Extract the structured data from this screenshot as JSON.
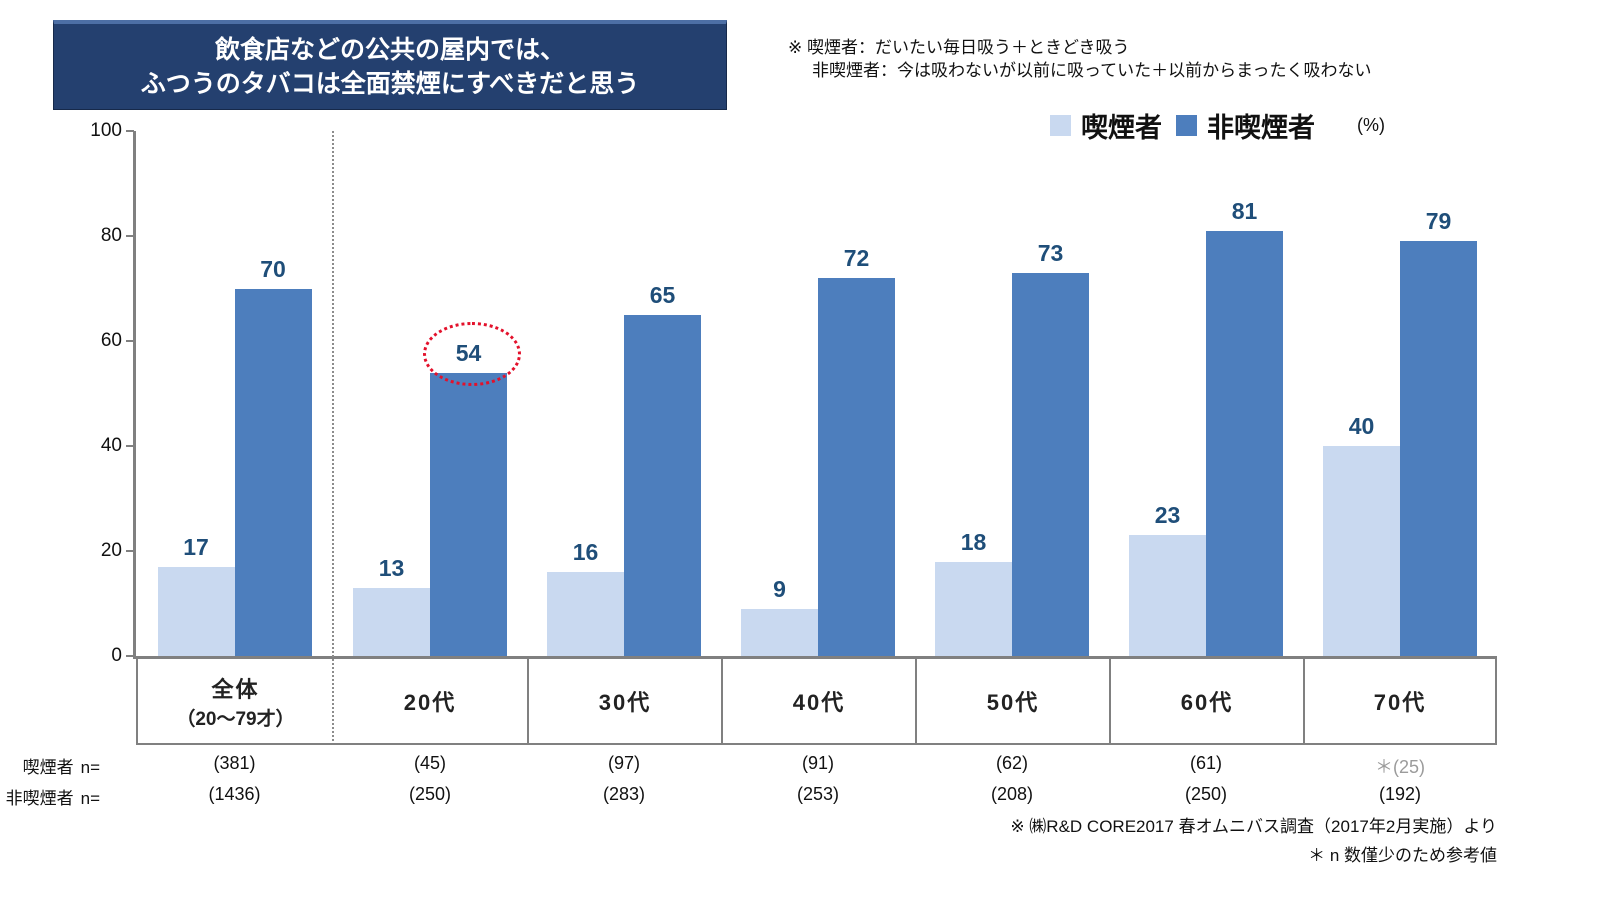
{
  "title": {
    "lines": [
      "飲食店などの公共の屋内では、",
      "ふつうのタバコは全面禁煙にすべきだと思う"
    ]
  },
  "definition_note": {
    "line1": "※ 喫煙者：だいたい毎日吸う＋ときどき吸う",
    "line2": "非喫煙者：今は吸わないが以前に吸っていた＋以前からまったく吸わない"
  },
  "legend": {
    "items": [
      {
        "label": "喫煙者",
        "color": "#c9d9f0"
      },
      {
        "label": "非喫煙者",
        "color": "#4d7ebd"
      }
    ],
    "unit_label": "(%)"
  },
  "chart_data": {
    "type": "bar",
    "title": "飲食店などの公共の屋内では、ふつうのタバコは全面禁煙にすべきだと思う",
    "ylabel": "(%)",
    "ylim": [
      0,
      100
    ],
    "yticks": [
      0,
      20,
      40,
      60,
      80,
      100
    ],
    "grid": false,
    "legend_position": "top-right",
    "categories": [
      {
        "label": "全体",
        "sublabel": "（20～79才）"
      },
      {
        "label": "20代",
        "sublabel": ""
      },
      {
        "label": "30代",
        "sublabel": ""
      },
      {
        "label": "40代",
        "sublabel": ""
      },
      {
        "label": "50代",
        "sublabel": ""
      },
      {
        "label": "60代",
        "sublabel": ""
      },
      {
        "label": "70代",
        "sublabel": ""
      }
    ],
    "series": [
      {
        "name": "喫煙者",
        "color": "#c9d9f0",
        "values": [
          17,
          13,
          16,
          9,
          18,
          23,
          40
        ]
      },
      {
        "name": "非喫煙者",
        "color": "#4d7ebd",
        "values": [
          70,
          54,
          65,
          72,
          73,
          81,
          79
        ]
      }
    ],
    "value_label_color": "#1f4e79",
    "annotation": {
      "type": "red-dotted-circle",
      "series": "非喫煙者",
      "category": "20代",
      "value": 54
    },
    "separator_after_category_index": 0
  },
  "n_table": {
    "rows": [
      {
        "label": "喫煙者",
        "suffix": "n=",
        "values": [
          "(381)",
          "(45)",
          "(97)",
          "(91)",
          "(62)",
          "(61)",
          "＊(25)"
        ],
        "muted_indices": [
          6
        ]
      },
      {
        "label": "非喫煙者",
        "suffix": "n=",
        "values": [
          "(1436)",
          "(250)",
          "(283)",
          "(253)",
          "(208)",
          "(250)",
          "(192)"
        ],
        "muted_indices": []
      }
    ]
  },
  "footer": {
    "line1": "※ ㈱R&D CORE2017 春オムニバス調査（2017年2月実施）より",
    "line2": "＊ n 数僅少のため参考値"
  }
}
